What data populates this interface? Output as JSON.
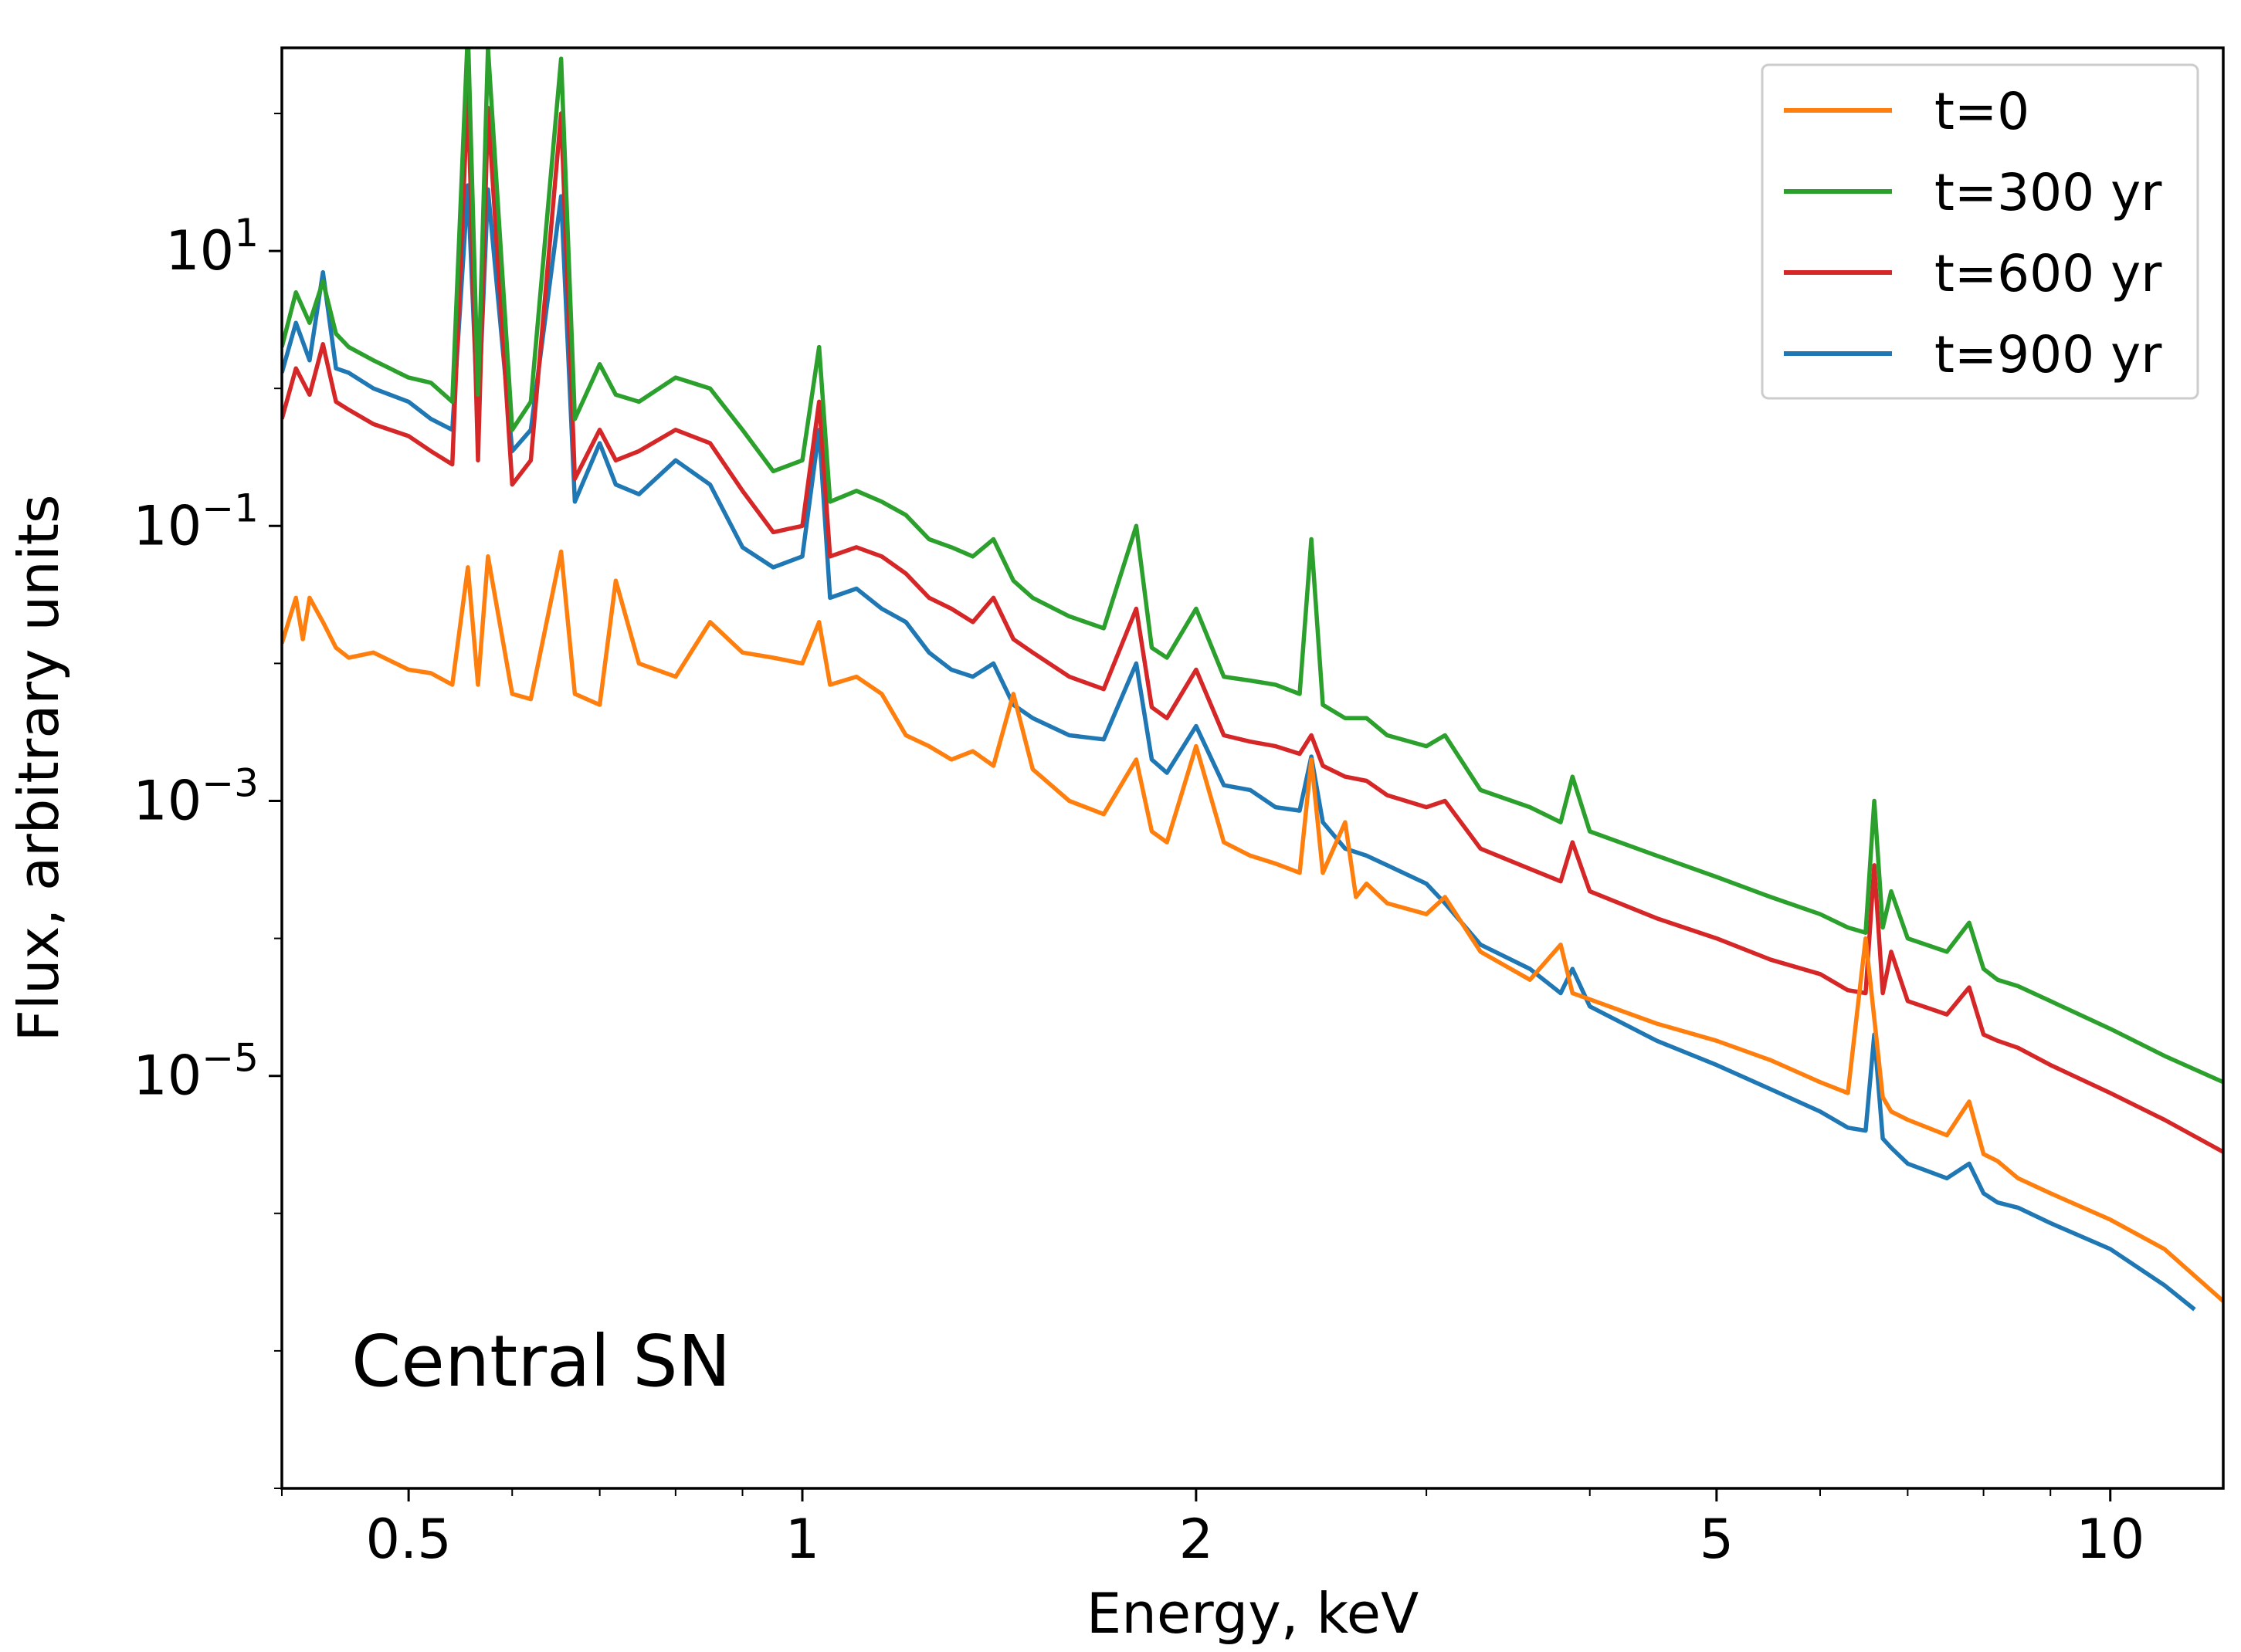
{
  "chart_data": {
    "type": "line",
    "xlabel": "Energy, keV",
    "ylabel": "Flux, arbitrary units",
    "xscale": "log",
    "yscale": "log",
    "xlim": [
      0.4,
      12.2
    ],
    "ylim": [
      1e-08,
      300
    ],
    "xticks": [
      {
        "value": 0.5,
        "label": "0.5"
      },
      {
        "value": 1,
        "label": "1"
      },
      {
        "value": 2,
        "label": "2"
      },
      {
        "value": 5,
        "label": "5"
      },
      {
        "value": 10,
        "label": "10"
      }
    ],
    "yticks": [
      {
        "value": 10,
        "base": "10",
        "exp": "1"
      },
      {
        "value": 0.1,
        "base": "10",
        "exp": "−1"
      },
      {
        "value": 0.001,
        "base": "10",
        "exp": "−3"
      },
      {
        "value": 1e-05,
        "base": "10",
        "exp": "−5"
      }
    ],
    "annotation": "Central SN",
    "legend_position": "top-right",
    "grid": false,
    "series": [
      {
        "name": "t=0",
        "color": "#ff7f0e"
      },
      {
        "name": "t=300 yr",
        "color": "#2ca02c"
      },
      {
        "name": "t=600 yr",
        "color": "#d62728"
      },
      {
        "name": "t=900 yr",
        "color": "#1f77b4"
      }
    ],
    "data_points": {
      "t=0": {
        "x": [
          0.4,
          0.41,
          0.415,
          0.42,
          0.43,
          0.44,
          0.45,
          0.47,
          0.5,
          0.52,
          0.54,
          0.555,
          0.565,
          0.575,
          0.6,
          0.62,
          0.654,
          0.67,
          0.7,
          0.72,
          0.75,
          0.8,
          0.85,
          0.9,
          0.95,
          1.0,
          1.03,
          1.05,
          1.1,
          1.15,
          1.2,
          1.25,
          1.3,
          1.35,
          1.4,
          1.45,
          1.5,
          1.6,
          1.7,
          1.8,
          1.85,
          1.9,
          2.0,
          2.1,
          2.2,
          2.3,
          2.4,
          2.45,
          2.5,
          2.6,
          2.65,
          2.7,
          2.8,
          3.0,
          3.1,
          3.3,
          3.6,
          3.8,
          3.88,
          4.0,
          4.5,
          5.0,
          5.5,
          6.0,
          6.3,
          6.5,
          6.7,
          6.8,
          7.0,
          7.5,
          7.8,
          8.0,
          8.2,
          8.5,
          9.0,
          10.0,
          11.0,
          12.2
        ],
        "y": [
          0.014,
          0.03,
          0.015,
          0.03,
          0.02,
          0.013,
          0.011,
          0.012,
          0.009,
          0.0085,
          0.007,
          0.05,
          0.007,
          0.06,
          0.006,
          0.0055,
          0.065,
          0.006,
          0.005,
          0.04,
          0.01,
          0.008,
          0.02,
          0.012,
          0.011,
          0.01,
          0.02,
          0.007,
          0.008,
          0.006,
          0.003,
          0.0025,
          0.002,
          0.0023,
          0.0018,
          0.006,
          0.0017,
          0.001,
          0.0008,
          0.002,
          0.0006,
          0.0005,
          0.0025,
          0.0005,
          0.0004,
          0.00035,
          0.0003,
          0.002,
          0.0003,
          0.0007,
          0.0002,
          0.00025,
          0.00018,
          0.00015,
          0.0002,
          8e-05,
          5e-05,
          9e-05,
          4e-05,
          3.6e-05,
          2.4e-05,
          1.8e-05,
          1.3e-05,
          9e-06,
          7.5e-06,
          0.0001,
          7e-06,
          5.5e-06,
          4.8e-06,
          3.7e-06,
          6.5e-06,
          2.7e-06,
          2.4e-06,
          1.8e-06,
          1.4e-06,
          9e-07,
          5.5e-07,
          2.3e-07
        ]
      },
      "t=300 yr": {
        "x": [
          0.4,
          0.41,
          0.42,
          0.43,
          0.44,
          0.45,
          0.47,
          0.5,
          0.52,
          0.54,
          0.555,
          0.565,
          0.575,
          0.6,
          0.62,
          0.654,
          0.67,
          0.7,
          0.72,
          0.75,
          0.8,
          0.85,
          0.9,
          0.95,
          1.0,
          1.03,
          1.05,
          1.1,
          1.15,
          1.2,
          1.25,
          1.3,
          1.35,
          1.4,
          1.45,
          1.5,
          1.6,
          1.7,
          1.8,
          1.85,
          1.9,
          2.0,
          2.1,
          2.2,
          2.3,
          2.4,
          2.45,
          2.5,
          2.6,
          2.7,
          2.8,
          3.0,
          3.1,
          3.3,
          3.6,
          3.8,
          3.88,
          4.0,
          4.5,
          5.0,
          5.5,
          6.0,
          6.3,
          6.5,
          6.6,
          6.7,
          6.8,
          7.0,
          7.5,
          7.8,
          8.0,
          8.2,
          8.5,
          9.0,
          10.0,
          11.0,
          12.2
        ],
        "y": [
          2.0,
          5.0,
          3.0,
          6.0,
          2.5,
          2.0,
          1.6,
          1.2,
          1.1,
          0.8,
          400,
          0.9,
          300,
          0.5,
          0.8,
          250,
          0.6,
          1.5,
          0.9,
          0.8,
          1.2,
          1.0,
          0.5,
          0.25,
          0.3,
          2.0,
          0.15,
          0.18,
          0.15,
          0.12,
          0.08,
          0.07,
          0.06,
          0.08,
          0.04,
          0.03,
          0.022,
          0.018,
          0.1,
          0.013,
          0.011,
          0.025,
          0.008,
          0.0075,
          0.007,
          0.006,
          0.08,
          0.005,
          0.004,
          0.004,
          0.003,
          0.0025,
          0.003,
          0.0012,
          0.0009,
          0.0007,
          0.0015,
          0.0006,
          0.0004,
          0.00028,
          0.0002,
          0.00015,
          0.00012,
          0.00011,
          0.001,
          0.00012,
          0.00022,
          0.0001,
          8e-05,
          0.00013,
          6e-05,
          5e-05,
          4.5e-05,
          3.5e-05,
          2.2e-05,
          1.4e-05,
          9e-06
        ]
      },
      "t=600 yr": {
        "x": [
          0.4,
          0.41,
          0.42,
          0.43,
          0.44,
          0.45,
          0.47,
          0.5,
          0.52,
          0.54,
          0.555,
          0.565,
          0.575,
          0.6,
          0.62,
          0.654,
          0.67,
          0.7,
          0.72,
          0.75,
          0.8,
          0.85,
          0.9,
          0.95,
          1.0,
          1.03,
          1.05,
          1.1,
          1.15,
          1.2,
          1.25,
          1.3,
          1.35,
          1.4,
          1.45,
          1.5,
          1.6,
          1.7,
          1.8,
          1.85,
          1.9,
          2.0,
          2.1,
          2.2,
          2.3,
          2.4,
          2.45,
          2.5,
          2.6,
          2.7,
          2.8,
          3.0,
          3.1,
          3.3,
          3.6,
          3.8,
          3.88,
          4.0,
          4.5,
          5.0,
          5.5,
          6.0,
          6.3,
          6.5,
          6.6,
          6.7,
          6.8,
          7.0,
          7.5,
          7.8,
          8.0,
          8.2,
          8.5,
          9.0,
          10.0,
          11.0,
          12.2
        ],
        "y": [
          0.6,
          1.4,
          0.9,
          2.1,
          0.8,
          0.7,
          0.55,
          0.45,
          0.35,
          0.28,
          150,
          0.3,
          110,
          0.2,
          0.3,
          100,
          0.22,
          0.5,
          0.3,
          0.35,
          0.5,
          0.4,
          0.18,
          0.09,
          0.1,
          0.8,
          0.06,
          0.07,
          0.06,
          0.045,
          0.03,
          0.025,
          0.02,
          0.03,
          0.015,
          0.012,
          0.008,
          0.0065,
          0.025,
          0.0048,
          0.004,
          0.009,
          0.003,
          0.0027,
          0.0025,
          0.0022,
          0.003,
          0.0018,
          0.0015,
          0.0014,
          0.0011,
          0.0009,
          0.001,
          0.00045,
          0.00032,
          0.00026,
          0.0005,
          0.00022,
          0.00014,
          0.0001,
          7e-05,
          5.5e-05,
          4.2e-05,
          4e-05,
          0.00034,
          4e-05,
          8e-05,
          3.5e-05,
          2.8e-05,
          4.4e-05,
          2e-05,
          1.8e-05,
          1.6e-05,
          1.2e-05,
          7.5e-06,
          4.8e-06,
          2.8e-06
        ]
      },
      "t=900 yr": {
        "x": [
          0.4,
          0.41,
          0.42,
          0.43,
          0.44,
          0.45,
          0.47,
          0.5,
          0.52,
          0.54,
          0.555,
          0.565,
          0.575,
          0.6,
          0.62,
          0.654,
          0.67,
          0.7,
          0.72,
          0.75,
          0.8,
          0.85,
          0.9,
          0.95,
          1.0,
          1.03,
          1.05,
          1.1,
          1.15,
          1.2,
          1.25,
          1.3,
          1.35,
          1.4,
          1.45,
          1.5,
          1.6,
          1.7,
          1.8,
          1.85,
          1.9,
          2.0,
          2.1,
          2.2,
          2.3,
          2.4,
          2.45,
          2.5,
          2.6,
          2.7,
          2.8,
          3.0,
          3.1,
          3.3,
          3.6,
          3.8,
          3.88,
          4.0,
          4.5,
          5.0,
          5.5,
          6.0,
          6.3,
          6.5,
          6.6,
          6.7,
          6.8,
          7.0,
          7.5,
          7.8,
          8.0,
          8.2,
          8.5,
          9.0,
          10.0,
          11.0,
          11.6
        ],
        "y": [
          1.3,
          3.0,
          1.6,
          7.0,
          1.4,
          1.3,
          1.0,
          0.8,
          0.6,
          0.5,
          30,
          0.55,
          28,
          0.35,
          0.5,
          25,
          0.15,
          0.4,
          0.2,
          0.17,
          0.3,
          0.2,
          0.07,
          0.05,
          0.06,
          0.5,
          0.03,
          0.035,
          0.025,
          0.02,
          0.012,
          0.009,
          0.008,
          0.01,
          0.005,
          0.004,
          0.003,
          0.0028,
          0.01,
          0.002,
          0.0016,
          0.0035,
          0.0013,
          0.0012,
          0.0009,
          0.00085,
          0.0021,
          0.0007,
          0.00045,
          0.0004,
          0.00034,
          0.00025,
          0.00018,
          9e-05,
          6e-05,
          4e-05,
          6e-05,
          3.2e-05,
          1.8e-05,
          1.2e-05,
          8e-06,
          5.5e-06,
          4.2e-06,
          4e-06,
          2e-05,
          3.5e-06,
          3e-06,
          2.3e-06,
          1.8e-06,
          2.3e-06,
          1.4e-06,
          1.2e-06,
          1.1e-06,
          8.5e-07,
          5.5e-07,
          3e-07,
          2e-07
        ]
      }
    }
  }
}
